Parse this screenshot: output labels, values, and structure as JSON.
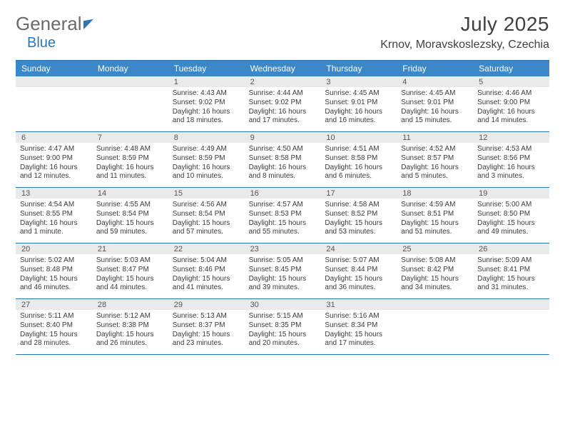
{
  "logo": {
    "left": "General",
    "right": "Blue"
  },
  "title": "July 2025",
  "location": "Krnov, Moravskoslezsky, Czechia",
  "day_labels": [
    "Sunday",
    "Monday",
    "Tuesday",
    "Wednesday",
    "Thursday",
    "Friday",
    "Saturday"
  ],
  "colors": {
    "header_bg": "#3b87c8",
    "rule": "#2c76b8",
    "numrow_bg": "#e9eaea",
    "text": "#333333"
  },
  "weeks": [
    {
      "nums": [
        "",
        "",
        "1",
        "2",
        "3",
        "4",
        "5"
      ],
      "cells": [
        {
          "sunrise": "",
          "sunset": "",
          "daylight": ""
        },
        {
          "sunrise": "",
          "sunset": "",
          "daylight": ""
        },
        {
          "sunrise": "Sunrise: 4:43 AM",
          "sunset": "Sunset: 9:02 PM",
          "daylight": "Daylight: 16 hours and 18 minutes."
        },
        {
          "sunrise": "Sunrise: 4:44 AM",
          "sunset": "Sunset: 9:02 PM",
          "daylight": "Daylight: 16 hours and 17 minutes."
        },
        {
          "sunrise": "Sunrise: 4:45 AM",
          "sunset": "Sunset: 9:01 PM",
          "daylight": "Daylight: 16 hours and 16 minutes."
        },
        {
          "sunrise": "Sunrise: 4:45 AM",
          "sunset": "Sunset: 9:01 PM",
          "daylight": "Daylight: 16 hours and 15 minutes."
        },
        {
          "sunrise": "Sunrise: 4:46 AM",
          "sunset": "Sunset: 9:00 PM",
          "daylight": "Daylight: 16 hours and 14 minutes."
        }
      ]
    },
    {
      "nums": [
        "6",
        "7",
        "8",
        "9",
        "10",
        "11",
        "12"
      ],
      "cells": [
        {
          "sunrise": "Sunrise: 4:47 AM",
          "sunset": "Sunset: 9:00 PM",
          "daylight": "Daylight: 16 hours and 12 minutes."
        },
        {
          "sunrise": "Sunrise: 4:48 AM",
          "sunset": "Sunset: 8:59 PM",
          "daylight": "Daylight: 16 hours and 11 minutes."
        },
        {
          "sunrise": "Sunrise: 4:49 AM",
          "sunset": "Sunset: 8:59 PM",
          "daylight": "Daylight: 16 hours and 10 minutes."
        },
        {
          "sunrise": "Sunrise: 4:50 AM",
          "sunset": "Sunset: 8:58 PM",
          "daylight": "Daylight: 16 hours and 8 minutes."
        },
        {
          "sunrise": "Sunrise: 4:51 AM",
          "sunset": "Sunset: 8:58 PM",
          "daylight": "Daylight: 16 hours and 6 minutes."
        },
        {
          "sunrise": "Sunrise: 4:52 AM",
          "sunset": "Sunset: 8:57 PM",
          "daylight": "Daylight: 16 hours and 5 minutes."
        },
        {
          "sunrise": "Sunrise: 4:53 AM",
          "sunset": "Sunset: 8:56 PM",
          "daylight": "Daylight: 16 hours and 3 minutes."
        }
      ]
    },
    {
      "nums": [
        "13",
        "14",
        "15",
        "16",
        "17",
        "18",
        "19"
      ],
      "cells": [
        {
          "sunrise": "Sunrise: 4:54 AM",
          "sunset": "Sunset: 8:55 PM",
          "daylight": "Daylight: 16 hours and 1 minute."
        },
        {
          "sunrise": "Sunrise: 4:55 AM",
          "sunset": "Sunset: 8:54 PM",
          "daylight": "Daylight: 15 hours and 59 minutes."
        },
        {
          "sunrise": "Sunrise: 4:56 AM",
          "sunset": "Sunset: 8:54 PM",
          "daylight": "Daylight: 15 hours and 57 minutes."
        },
        {
          "sunrise": "Sunrise: 4:57 AM",
          "sunset": "Sunset: 8:53 PM",
          "daylight": "Daylight: 15 hours and 55 minutes."
        },
        {
          "sunrise": "Sunrise: 4:58 AM",
          "sunset": "Sunset: 8:52 PM",
          "daylight": "Daylight: 15 hours and 53 minutes."
        },
        {
          "sunrise": "Sunrise: 4:59 AM",
          "sunset": "Sunset: 8:51 PM",
          "daylight": "Daylight: 15 hours and 51 minutes."
        },
        {
          "sunrise": "Sunrise: 5:00 AM",
          "sunset": "Sunset: 8:50 PM",
          "daylight": "Daylight: 15 hours and 49 minutes."
        }
      ]
    },
    {
      "nums": [
        "20",
        "21",
        "22",
        "23",
        "24",
        "25",
        "26"
      ],
      "cells": [
        {
          "sunrise": "Sunrise: 5:02 AM",
          "sunset": "Sunset: 8:48 PM",
          "daylight": "Daylight: 15 hours and 46 minutes."
        },
        {
          "sunrise": "Sunrise: 5:03 AM",
          "sunset": "Sunset: 8:47 PM",
          "daylight": "Daylight: 15 hours and 44 minutes."
        },
        {
          "sunrise": "Sunrise: 5:04 AM",
          "sunset": "Sunset: 8:46 PM",
          "daylight": "Daylight: 15 hours and 41 minutes."
        },
        {
          "sunrise": "Sunrise: 5:05 AM",
          "sunset": "Sunset: 8:45 PM",
          "daylight": "Daylight: 15 hours and 39 minutes."
        },
        {
          "sunrise": "Sunrise: 5:07 AM",
          "sunset": "Sunset: 8:44 PM",
          "daylight": "Daylight: 15 hours and 36 minutes."
        },
        {
          "sunrise": "Sunrise: 5:08 AM",
          "sunset": "Sunset: 8:42 PM",
          "daylight": "Daylight: 15 hours and 34 minutes."
        },
        {
          "sunrise": "Sunrise: 5:09 AM",
          "sunset": "Sunset: 8:41 PM",
          "daylight": "Daylight: 15 hours and 31 minutes."
        }
      ]
    },
    {
      "nums": [
        "27",
        "28",
        "29",
        "30",
        "31",
        "",
        ""
      ],
      "cells": [
        {
          "sunrise": "Sunrise: 5:11 AM",
          "sunset": "Sunset: 8:40 PM",
          "daylight": "Daylight: 15 hours and 28 minutes."
        },
        {
          "sunrise": "Sunrise: 5:12 AM",
          "sunset": "Sunset: 8:38 PM",
          "daylight": "Daylight: 15 hours and 26 minutes."
        },
        {
          "sunrise": "Sunrise: 5:13 AM",
          "sunset": "Sunset: 8:37 PM",
          "daylight": "Daylight: 15 hours and 23 minutes."
        },
        {
          "sunrise": "Sunrise: 5:15 AM",
          "sunset": "Sunset: 8:35 PM",
          "daylight": "Daylight: 15 hours and 20 minutes."
        },
        {
          "sunrise": "Sunrise: 5:16 AM",
          "sunset": "Sunset: 8:34 PM",
          "daylight": "Daylight: 15 hours and 17 minutes."
        },
        {
          "sunrise": "",
          "sunset": "",
          "daylight": ""
        },
        {
          "sunrise": "",
          "sunset": "",
          "daylight": ""
        }
      ]
    }
  ]
}
